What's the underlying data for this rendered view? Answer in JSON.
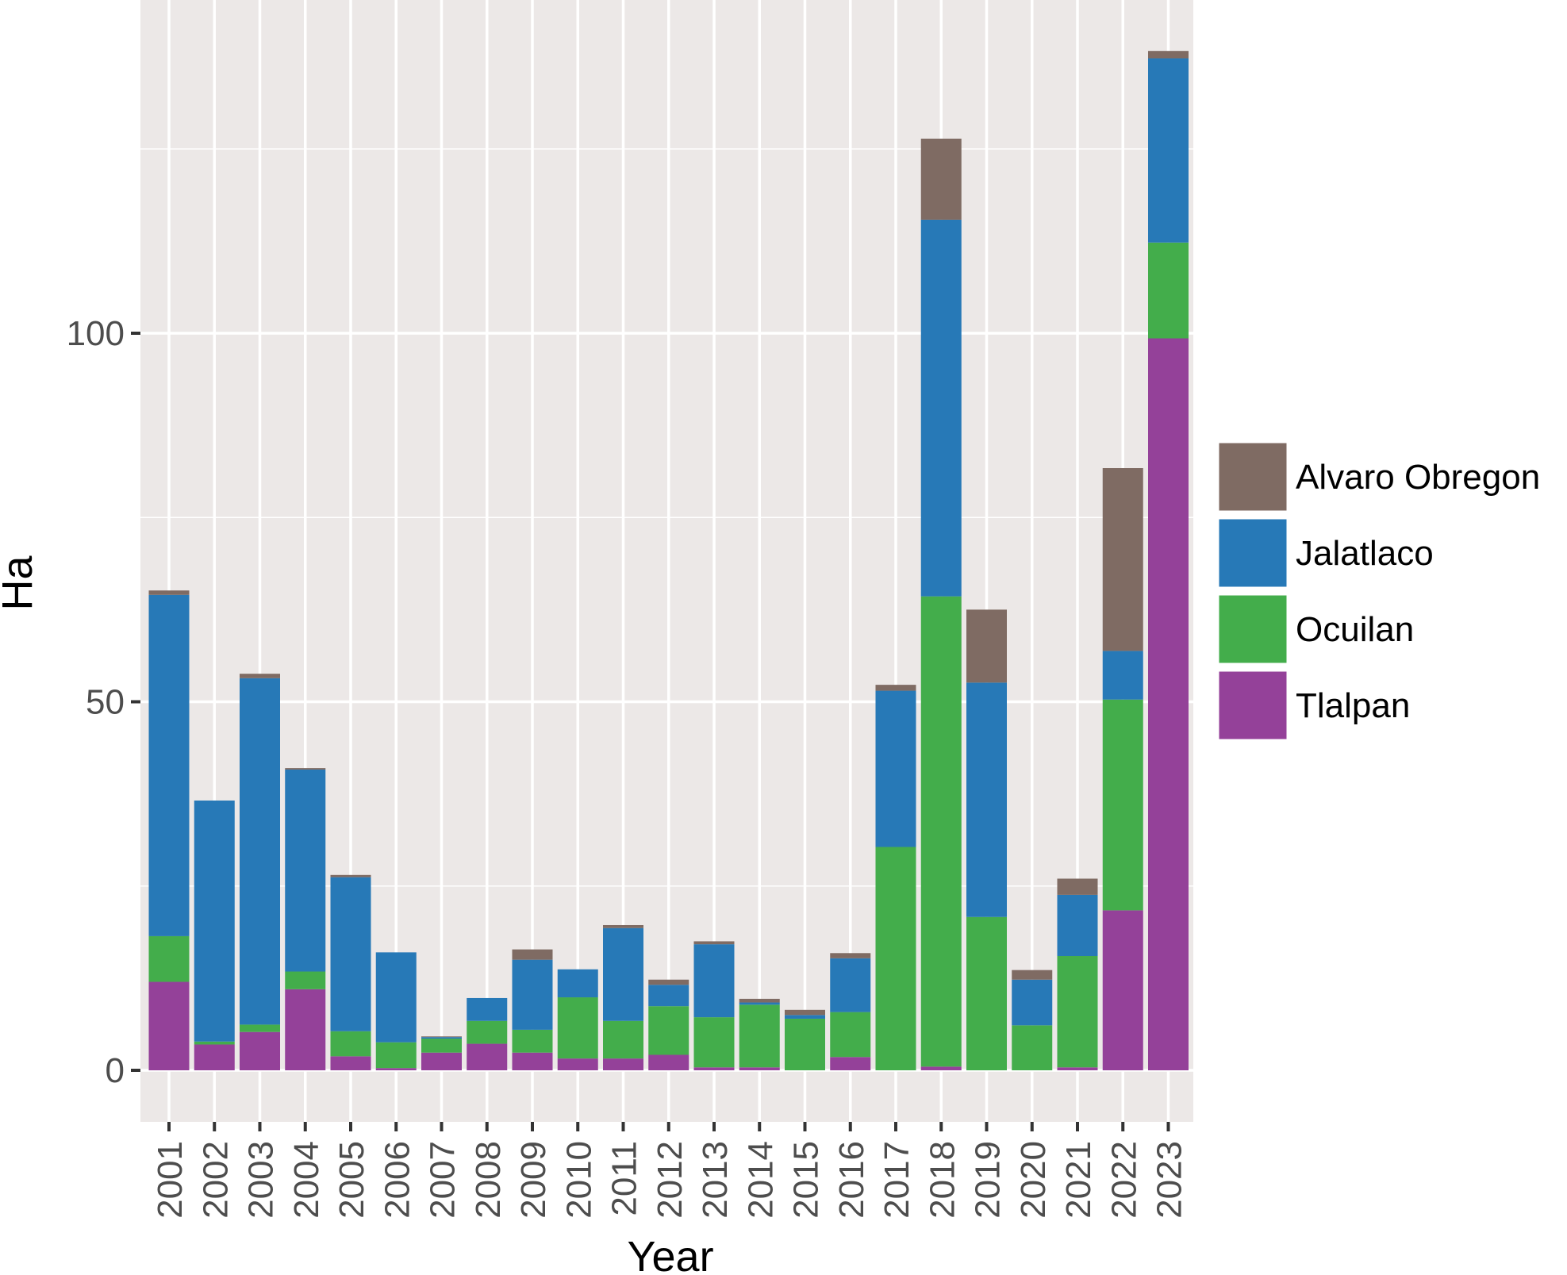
{
  "chart_data": {
    "type": "bar",
    "stacked": true,
    "title": "",
    "xlabel": "Year",
    "ylabel": "Ha",
    "ylim": [
      -7,
      140
    ],
    "yticks": [
      0,
      50,
      100
    ],
    "grid": true,
    "legend_position": "right",
    "categories": [
      "2001",
      "2002",
      "2003",
      "2004",
      "2005",
      "2006",
      "2007",
      "2008",
      "2009",
      "2010",
      "2011",
      "2012",
      "2013",
      "2014",
      "2015",
      "2016",
      "2017",
      "2018",
      "2019",
      "2020",
      "2021",
      "2022",
      "2023"
    ],
    "series": [
      {
        "name": "Tlalpan",
        "color": "#944199",
        "values": [
          12,
          3.5,
          5.2,
          11,
          1.9,
          0.3,
          2.4,
          3.6,
          2.4,
          1.6,
          1.6,
          2.1,
          0.4,
          0.4,
          0,
          1.8,
          0,
          0.5,
          0,
          0,
          0.4,
          21.7,
          99.3
        ]
      },
      {
        "name": "Ocuilan",
        "color": "#43ad4b",
        "values": [
          6.2,
          0.4,
          1,
          2.4,
          3.4,
          3.5,
          1.9,
          3.1,
          3.1,
          8.3,
          5.1,
          6.6,
          6.8,
          8.5,
          7,
          6.1,
          30.3,
          63.8,
          20.8,
          6.1,
          15.1,
          28.6,
          13
        ]
      },
      {
        "name": "Jalatlaco",
        "color": "#2779b7",
        "values": [
          46.3,
          32.7,
          47,
          27.4,
          20.9,
          12.2,
          0.2,
          3.1,
          9.5,
          3.8,
          12.6,
          2.9,
          9.9,
          0.3,
          0.5,
          7.3,
          21.2,
          51.1,
          31.8,
          6.2,
          8.3,
          6.6,
          25
        ]
      },
      {
        "name": "Alvaro Obregon",
        "color": "#7f6b63",
        "values": [
          0.6,
          0,
          0.6,
          0.2,
          0.3,
          0,
          0.1,
          0,
          1.4,
          0,
          0.4,
          0.7,
          0.4,
          0.5,
          0.7,
          0.7,
          0.8,
          11,
          9.9,
          1.3,
          2.2,
          24.8,
          1
        ]
      }
    ]
  }
}
